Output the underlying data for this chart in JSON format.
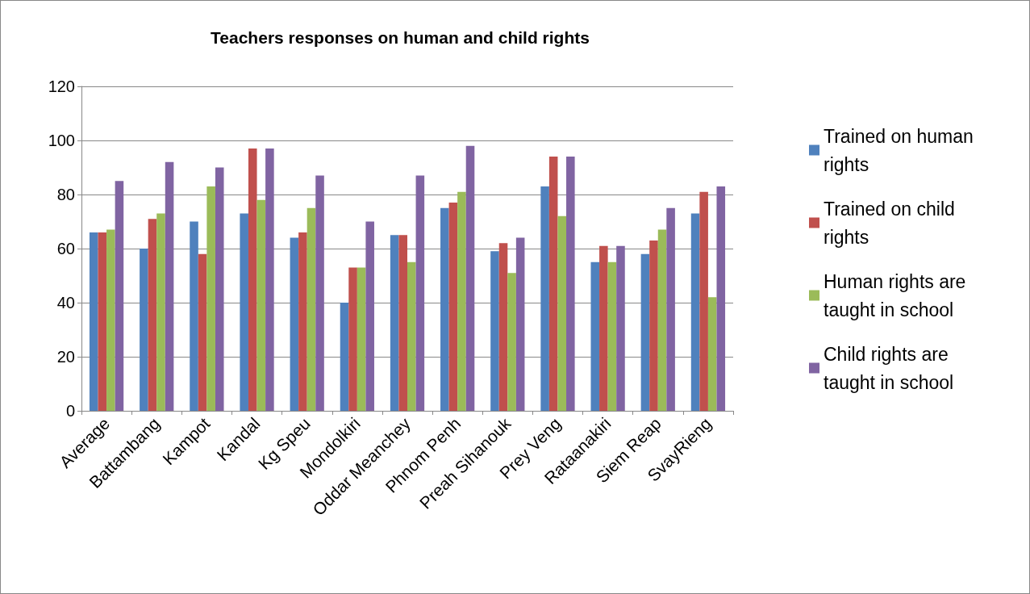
{
  "chart_data": {
    "type": "bar",
    "title": "Teachers responses on human and child rights",
    "categories": [
      "Average",
      "Battambang",
      "Kampot",
      "Kandal",
      "Kg Speu",
      "Mondolkiri",
      "Oddar Meanchey",
      "Phnom Penh",
      "Preah Sihanouk",
      "Prey Veng",
      "Rataanakiri",
      "Siem Reap",
      "SvayRieng"
    ],
    "series": [
      {
        "name": "Trained on human rights",
        "color": "#4f81bd",
        "values": [
          66,
          60,
          70,
          73,
          64,
          40,
          65,
          75,
          59,
          83,
          55,
          58,
          73
        ]
      },
      {
        "name": "Trained on child rights",
        "color": "#c0504d",
        "values": [
          66,
          71,
          58,
          97,
          66,
          53,
          65,
          77,
          62,
          94,
          61,
          63,
          81
        ]
      },
      {
        "name": "Human rights are taught in school",
        "color": "#9bbb59",
        "values": [
          67,
          73,
          83,
          78,
          75,
          53,
          55,
          81,
          51,
          72,
          55,
          67,
          42
        ]
      },
      {
        "name": "Child rights are taught in school",
        "color": "#8064a2",
        "values": [
          85,
          92,
          90,
          97,
          87,
          70,
          87,
          98,
          64,
          94,
          61,
          75,
          83
        ]
      }
    ],
    "ylim": [
      0,
      120
    ],
    "yticks": [
      0,
      20,
      40,
      60,
      80,
      100,
      120
    ],
    "grid": "y",
    "legend": "right"
  }
}
